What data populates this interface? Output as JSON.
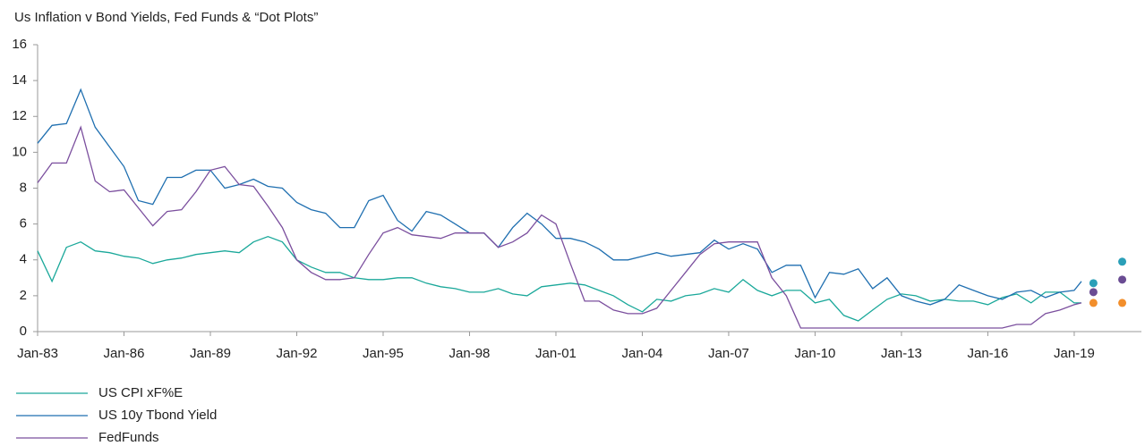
{
  "chart_data": {
    "type": "line",
    "title": "Us Inflation v Bond Yields, Fed Funds & “Dot Plots”",
    "x": [
      "Jan-83",
      "Jul-83",
      "Jan-84",
      "Jul-84",
      "Jan-85",
      "Jul-85",
      "Jan-86",
      "Jul-86",
      "Jan-87",
      "Jul-87",
      "Jan-88",
      "Jul-88",
      "Jan-89",
      "Jul-89",
      "Jan-90",
      "Jul-90",
      "Jan-91",
      "Jul-91",
      "Jan-92",
      "Jul-92",
      "Jan-93",
      "Jul-93",
      "Jan-94",
      "Jul-94",
      "Jan-95",
      "Jul-95",
      "Jan-96",
      "Jul-96",
      "Jan-97",
      "Jul-97",
      "Jan-98",
      "Jul-98",
      "Jan-99",
      "Jul-99",
      "Jan-00",
      "Jul-00",
      "Jan-01",
      "Jul-01",
      "Jan-02",
      "Jul-02",
      "Jan-03",
      "Jul-03",
      "Jan-04",
      "Jul-04",
      "Jan-05",
      "Jul-05",
      "Jan-06",
      "Jul-06",
      "Jan-07",
      "Jul-07",
      "Jan-08",
      "Jul-08",
      "Jan-09",
      "Jul-09",
      "Jan-10",
      "Jul-10",
      "Jan-11",
      "Jul-11",
      "Jan-12",
      "Jul-12",
      "Jan-13",
      "Jul-13",
      "Jan-14",
      "Jul-14",
      "Jan-15",
      "Jul-15",
      "Jan-16",
      "Jul-16",
      "Jan-17",
      "Jul-17",
      "Jan-18",
      "Jul-18",
      "Jan-19",
      "Apr-19"
    ],
    "series": [
      {
        "name": "US CPI xF%E",
        "color": "#1aa89a",
        "values": [
          4.5,
          2.8,
          4.7,
          5.0,
          4.5,
          4.4,
          4.2,
          4.1,
          3.8,
          4.0,
          4.1,
          4.3,
          4.4,
          4.5,
          4.4,
          5.0,
          5.3,
          5.0,
          4.0,
          3.6,
          3.3,
          3.3,
          3.0,
          2.9,
          2.9,
          3.0,
          3.0,
          2.7,
          2.5,
          2.4,
          2.2,
          2.2,
          2.4,
          2.1,
          2.0,
          2.5,
          2.6,
          2.7,
          2.6,
          2.3,
          2.0,
          1.5,
          1.1,
          1.8,
          1.7,
          2.0,
          2.1,
          2.4,
          2.2,
          2.9,
          2.3,
          2.0,
          2.3,
          2.3,
          1.6,
          1.8,
          0.9,
          0.6,
          1.2,
          1.8,
          2.1,
          2.0,
          1.7,
          1.8,
          1.7,
          1.7,
          1.5,
          1.9,
          2.1,
          1.6,
          2.2,
          2.2,
          1.6,
          1.6
        ]
      },
      {
        "name": "US 10y Tbond Yield",
        "color": "#1f6fb0",
        "values": [
          10.5,
          11.5,
          11.6,
          13.5,
          11.4,
          10.3,
          9.2,
          7.3,
          7.1,
          8.6,
          8.6,
          9.0,
          9.0,
          8.0,
          8.2,
          8.5,
          8.1,
          8.0,
          7.2,
          6.8,
          6.6,
          5.8,
          5.8,
          7.3,
          7.6,
          6.2,
          5.6,
          6.7,
          6.5,
          6.0,
          5.5,
          5.5,
          4.7,
          5.8,
          6.6,
          6.0,
          5.2,
          5.2,
          5.0,
          4.6,
          4.0,
          4.0,
          4.2,
          4.4,
          4.2,
          4.3,
          4.4,
          5.1,
          4.6,
          4.9,
          4.6,
          3.3,
          3.7,
          3.7,
          1.9,
          3.3,
          3.2,
          3.5,
          2.4,
          3.0,
          2.0,
          1.7,
          1.5,
          1.8,
          2.6,
          2.3,
          2.0,
          1.8,
          2.2,
          2.3,
          1.9,
          2.2,
          2.3,
          2.8
        ]
      },
      {
        "name": "FedFunds",
        "color": "#7b4f9e",
        "values": [
          8.3,
          9.4,
          9.4,
          11.4,
          8.4,
          7.8,
          7.9,
          6.9,
          5.9,
          6.7,
          6.8,
          7.8,
          9.0,
          9.2,
          8.2,
          8.1,
          7.0,
          5.8,
          4.0,
          3.3,
          2.9,
          2.9,
          3.0,
          4.3,
          5.5,
          5.8,
          5.4,
          5.3,
          5.2,
          5.5,
          5.5,
          5.5,
          4.7,
          5.0,
          5.5,
          6.5,
          6.0,
          3.8,
          1.7,
          1.7,
          1.2,
          1.0,
          1.0,
          1.3,
          2.3,
          3.3,
          4.3,
          4.9,
          5.0,
          5.0,
          5.0,
          3.0,
          2.0,
          0.2,
          0.2,
          0.2,
          0.2,
          0.2,
          0.2,
          0.2,
          0.2,
          0.2,
          0.2,
          0.2,
          0.2,
          0.2,
          0.2,
          0.2,
          0.4,
          0.4,
          1.0,
          1.2,
          1.5,
          1.6
        ]
      }
    ],
    "dots": {
      "x": [
        "Sep-19",
        "Sep-20"
      ],
      "series": [
        {
          "color": "#2a9fb8",
          "values": [
            2.7,
            3.9
          ]
        },
        {
          "color": "#6a4c93",
          "values": [
            2.2,
            2.9
          ]
        },
        {
          "color": "#f28e2b",
          "values": [
            1.6,
            1.6
          ]
        }
      ]
    },
    "xlim": [
      "Jan-83",
      "May-21"
    ],
    "xticks": [
      "Jan-83",
      "Jan-86",
      "Jan-89",
      "Jan-92",
      "Jan-95",
      "Jan-98",
      "Jan-01",
      "Jan-04",
      "Jan-07",
      "Jan-10",
      "Jan-13",
      "Jan-16",
      "Jan-19"
    ],
    "ylim": [
      0,
      16
    ],
    "yticks": [
      0,
      2,
      4,
      6,
      8,
      10,
      12,
      14,
      16
    ],
    "grid": false
  }
}
